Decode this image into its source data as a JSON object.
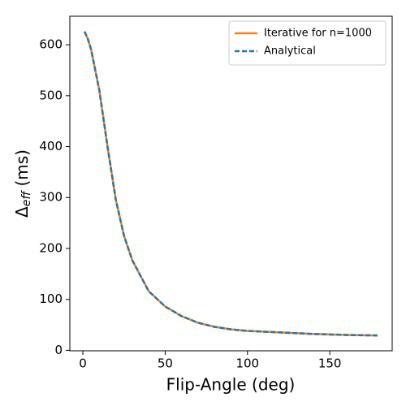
{
  "chart_data": {
    "type": "line",
    "xlabel": "Flip-Angle (deg)",
    "ylabel": {
      "symbol": "Δ",
      "subscript": "eff",
      "unit": "(ms)"
    },
    "x": [
      1,
      3,
      5,
      10,
      15,
      20,
      25,
      30,
      40,
      50,
      60,
      70,
      80,
      90,
      100,
      120,
      140,
      160,
      179
    ],
    "series": [
      {
        "name": "Iterative for n=1000",
        "color": "#ff7f0e",
        "style": "solid",
        "values": [
          626,
          612,
          591,
          511,
          400,
          296,
          225,
          177,
          116,
          86,
          67,
          54,
          46,
          41,
          38,
          35,
          32,
          30,
          29
        ]
      },
      {
        "name": "Analytical",
        "color": "#1f77b4",
        "style": "dashed",
        "values": [
          626,
          612,
          591,
          511,
          400,
          296,
          225,
          177,
          116,
          86,
          67,
          54,
          46,
          41,
          38,
          35,
          32,
          30,
          29
        ]
      }
    ],
    "xlim": [
      -7.9,
      187.9
    ],
    "ylim": [
      -1,
      656
    ],
    "xticks": [
      0,
      50,
      100,
      150
    ],
    "yticks": [
      0,
      100,
      200,
      300,
      400,
      500,
      600
    ],
    "legend": "upper right"
  }
}
